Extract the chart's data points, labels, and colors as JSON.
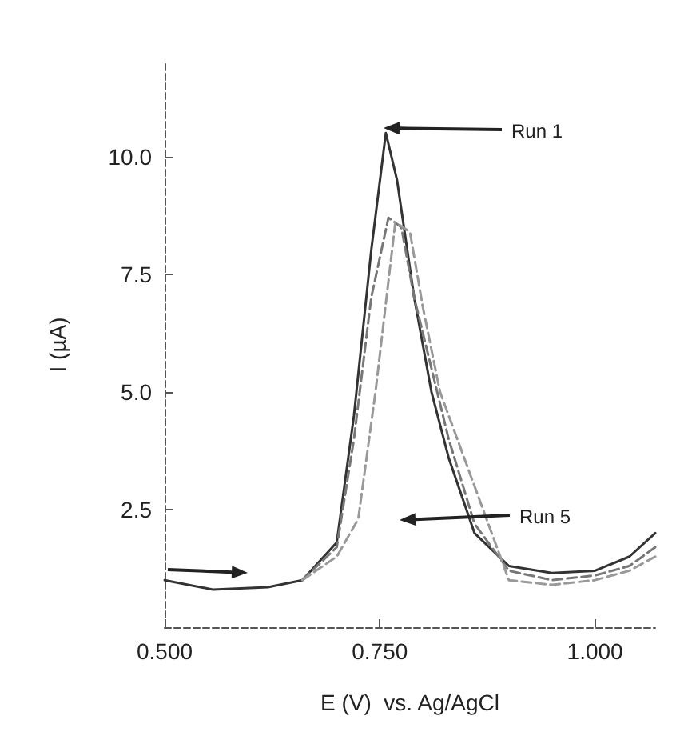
{
  "chart_data": {
    "type": "line",
    "xlabel": "E (V)  vs. Ag/AgCl",
    "ylabel": "I (µA)",
    "xlim": [
      0.5,
      1.07
    ],
    "ylim": [
      0,
      12
    ],
    "xticks": [
      {
        "value": 0.5,
        "label": "0.500"
      },
      {
        "value": 0.75,
        "label": "0.750"
      },
      {
        "value": 1.0,
        "label": "1.000"
      }
    ],
    "yticks": [
      2.5,
      {
        "value": 5,
        "label": "5.0"
      },
      7.5,
      {
        "value": 10,
        "label": "10.0"
      }
    ],
    "grid": false,
    "marker": "none",
    "series": [
      {
        "color": "#333333",
        "line_style": "solid",
        "x": [
          0.5,
          0.556,
          0.62,
          0.66,
          0.7,
          0.72,
          0.74,
          0.757,
          0.77,
          0.79,
          0.81,
          0.83,
          0.86,
          0.9,
          0.95,
          1.0,
          1.04,
          1.07
        ],
        "values": [
          1.0,
          0.8,
          0.85,
          1.0,
          1.8,
          4.5,
          8.0,
          10.5,
          9.5,
          7.0,
          5.0,
          3.6,
          2.0,
          1.3,
          1.15,
          1.2,
          1.5,
          2.0
        ]
      },
      {
        "color": "#777777",
        "line_style": "dashed",
        "x": [
          0.66,
          0.7,
          0.72,
          0.74,
          0.76,
          0.775,
          0.79,
          0.81,
          0.83,
          0.86,
          0.9,
          0.95,
          1.0,
          1.04,
          1.07
        ],
        "values": [
          1.0,
          1.7,
          4.0,
          7.0,
          8.7,
          8.5,
          7.0,
          5.5,
          4.0,
          2.2,
          1.2,
          1.0,
          1.1,
          1.3,
          1.7
        ]
      },
      {
        "color": "#999999",
        "line_style": "dashed",
        "x": [
          0.66,
          0.7,
          0.725,
          0.745,
          0.768,
          0.785,
          0.8,
          0.82,
          0.85,
          0.88,
          0.9,
          0.95,
          1.0,
          1.04,
          1.07
        ],
        "values": [
          1.0,
          1.5,
          2.3,
          5.0,
          8.6,
          8.4,
          6.8,
          5.0,
          3.5,
          2.0,
          1.0,
          0.9,
          1.0,
          1.2,
          1.5
        ]
      }
    ],
    "annotations": [
      "Run 1",
      "Run 5"
    ]
  }
}
